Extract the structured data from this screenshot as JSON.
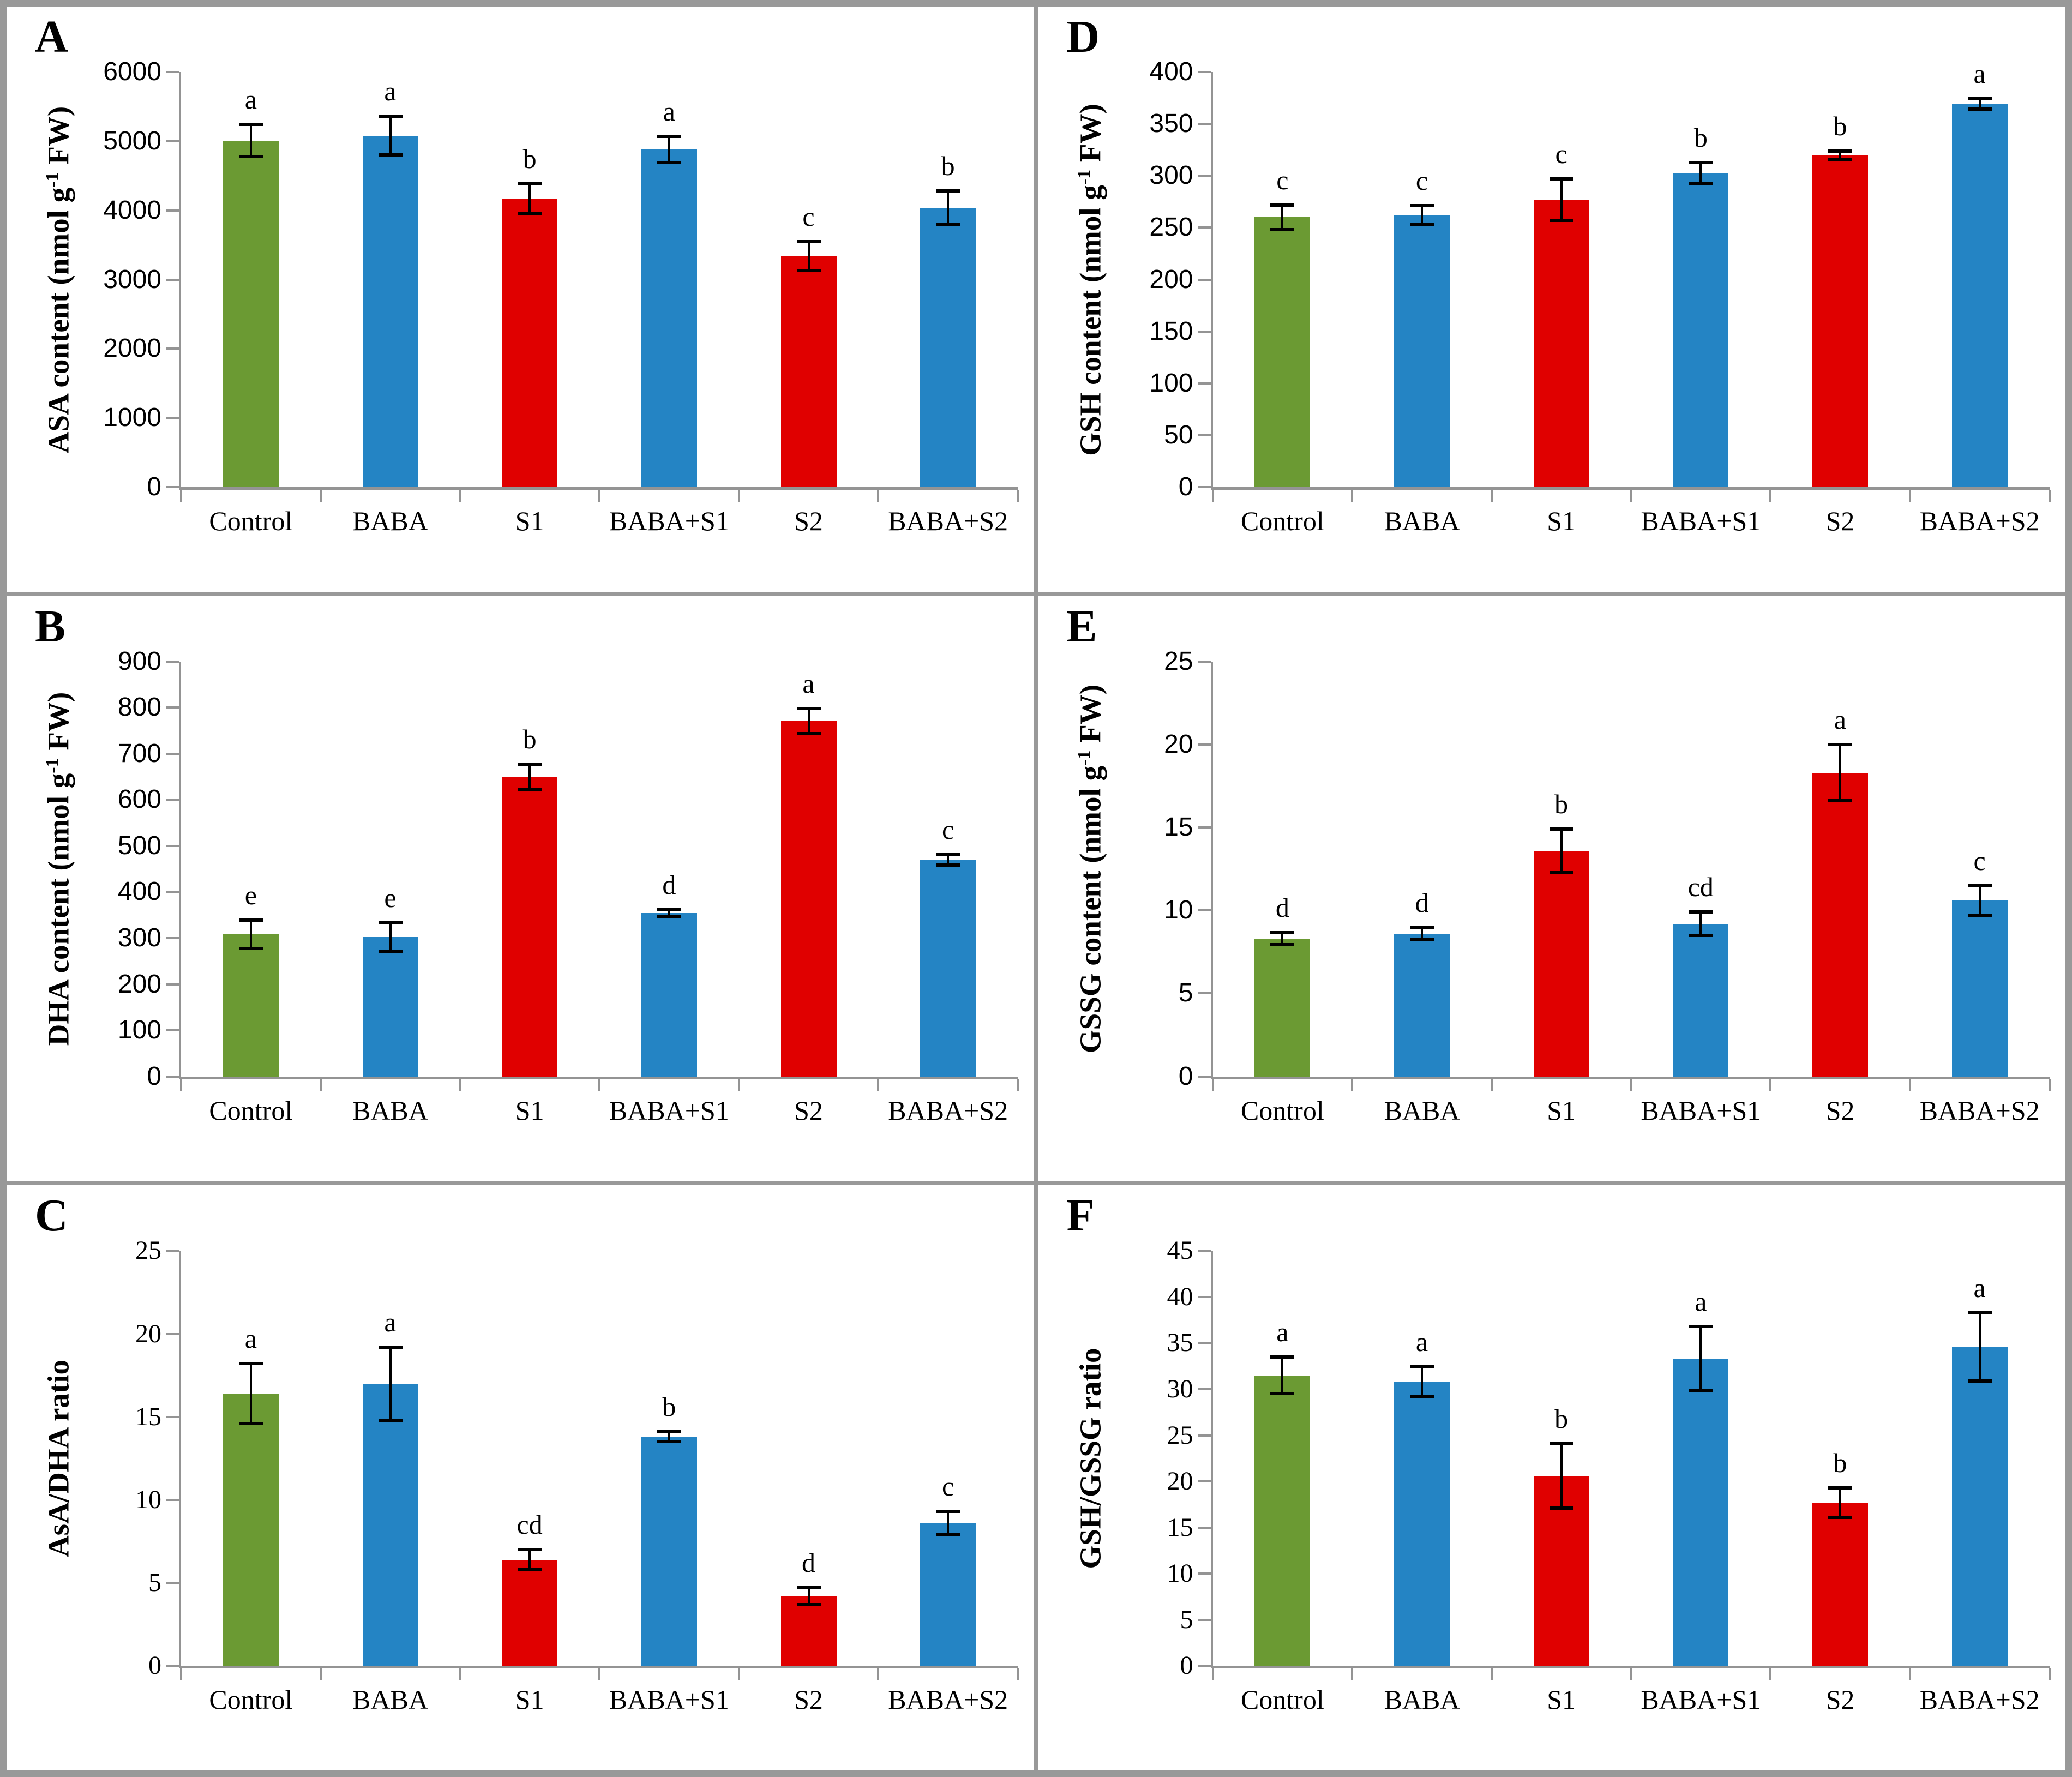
{
  "figure": {
    "palette": {
      "green": "#6B9A33",
      "blue": "#2484C4",
      "red": "#E00000"
    },
    "axis_color": "#949494",
    "border_color": "#999999",
    "grid_order_note": "panels laid out row-major as A,D,B,E,C,F"
  },
  "chart_data": [
    {
      "type": "bar",
      "panel_label": "A",
      "ylabel_parts": [
        "ASA content (nmol g",
        "-1",
        " FW)"
      ],
      "ylim": [
        0,
        6000
      ],
      "yticks": [
        0,
        1000,
        2000,
        3000,
        4000,
        5000,
        6000
      ],
      "tick_font": "sans",
      "categories": [
        "Control",
        "BABA",
        "S1",
        "BABA+S1",
        "S2",
        "BABA+S2"
      ],
      "values": [
        5010,
        5080,
        4170,
        4880,
        3340,
        4040
      ],
      "errors": [
        230,
        280,
        210,
        190,
        210,
        240
      ],
      "sig_letters": [
        "a",
        "a",
        "b",
        "a",
        "c",
        "b"
      ],
      "bar_color_roles": [
        "green",
        "blue",
        "red",
        "blue",
        "red",
        "blue"
      ],
      "legend": "none",
      "grid": "off"
    },
    {
      "type": "bar",
      "panel_label": "B",
      "ylabel_parts": [
        "DHA content (nmol g",
        "-1",
        " FW)"
      ],
      "ylim": [
        0,
        900
      ],
      "yticks": [
        0,
        100,
        200,
        300,
        400,
        500,
        600,
        700,
        800,
        900
      ],
      "tick_font": "sans",
      "categories": [
        "Control",
        "BABA",
        "S1",
        "BABA+S1",
        "S2",
        "BABA+S2"
      ],
      "values": [
        308,
        302,
        650,
        354,
        771,
        470
      ],
      "errors": [
        31,
        31,
        27,
        8,
        27,
        11
      ],
      "sig_letters": [
        "e",
        "e",
        "b",
        "d",
        "a",
        "c"
      ],
      "bar_color_roles": [
        "green",
        "blue",
        "red",
        "blue",
        "red",
        "blue"
      ],
      "legend": "none",
      "grid": "off"
    },
    {
      "type": "bar",
      "panel_label": "C",
      "ylabel_parts": [
        "AsA/DHA ratio"
      ],
      "ylim": [
        0,
        25
      ],
      "yticks": [
        0,
        5,
        10,
        15,
        20,
        25
      ],
      "tick_font": "serif",
      "categories": [
        "Control",
        "BABA",
        "S1",
        "BABA+S1",
        "S2",
        "BABA+S2"
      ],
      "values": [
        16.4,
        17.0,
        6.4,
        13.8,
        4.2,
        8.6
      ],
      "errors": [
        1.8,
        2.2,
        0.6,
        0.3,
        0.5,
        0.7
      ],
      "sig_letters": [
        "a",
        "a",
        "cd",
        "b",
        "d",
        "c"
      ],
      "bar_color_roles": [
        "green",
        "blue",
        "red",
        "blue",
        "red",
        "blue"
      ],
      "legend": "none",
      "grid": "off"
    },
    {
      "type": "bar",
      "panel_label": "D",
      "ylabel_parts": [
        "GSH content (nmol g",
        "-1",
        " FW)"
      ],
      "ylim": [
        0,
        400
      ],
      "yticks": [
        0,
        50,
        100,
        150,
        200,
        250,
        300,
        350,
        400
      ],
      "tick_font": "sans",
      "categories": [
        "Control",
        "BABA",
        "S1",
        "BABA+S1",
        "S2",
        "BABA+S2"
      ],
      "values": [
        260,
        262,
        277,
        303,
        320,
        369
      ],
      "errors": [
        12,
        9,
        20,
        10,
        4,
        5
      ],
      "sig_letters": [
        "c",
        "c",
        "c",
        "b",
        "b",
        "a"
      ],
      "bar_color_roles": [
        "green",
        "blue",
        "red",
        "blue",
        "red",
        "blue"
      ],
      "legend": "none",
      "grid": "off"
    },
    {
      "type": "bar",
      "panel_label": "E",
      "ylabel_parts": [
        "GSSG content (nmol g",
        "-1",
        " FW)"
      ],
      "ylim": [
        0,
        25
      ],
      "yticks": [
        0,
        5,
        10,
        15,
        20,
        25
      ],
      "tick_font": "sans",
      "categories": [
        "Control",
        "BABA",
        "S1",
        "BABA+S1",
        "S2",
        "BABA+S2"
      ],
      "values": [
        8.3,
        8.6,
        13.6,
        9.2,
        18.3,
        10.6
      ],
      "errors": [
        0.35,
        0.35,
        1.3,
        0.7,
        1.7,
        0.9
      ],
      "sig_letters": [
        "d",
        "d",
        "b",
        "cd",
        "a",
        "c"
      ],
      "bar_color_roles": [
        "green",
        "blue",
        "red",
        "blue",
        "red",
        "blue"
      ],
      "legend": "none",
      "grid": "off"
    },
    {
      "type": "bar",
      "panel_label": "F",
      "ylabel_parts": [
        "GSH/GSSG ratio"
      ],
      "ylim": [
        0,
        45
      ],
      "yticks": [
        0,
        5,
        10,
        15,
        20,
        25,
        30,
        35,
        40,
        45
      ],
      "tick_font": "serif",
      "categories": [
        "Control",
        "BABA",
        "S1",
        "BABA+S1",
        "S2",
        "BABA+S2"
      ],
      "values": [
        31.5,
        30.8,
        20.6,
        33.3,
        17.7,
        34.6
      ],
      "errors": [
        2.0,
        1.6,
        3.5,
        3.5,
        1.6,
        3.7
      ],
      "sig_letters": [
        "a",
        "a",
        "b",
        "a",
        "b",
        "a"
      ],
      "bar_color_roles": [
        "green",
        "blue",
        "red",
        "blue",
        "red",
        "blue"
      ],
      "legend": "none",
      "grid": "off"
    }
  ]
}
